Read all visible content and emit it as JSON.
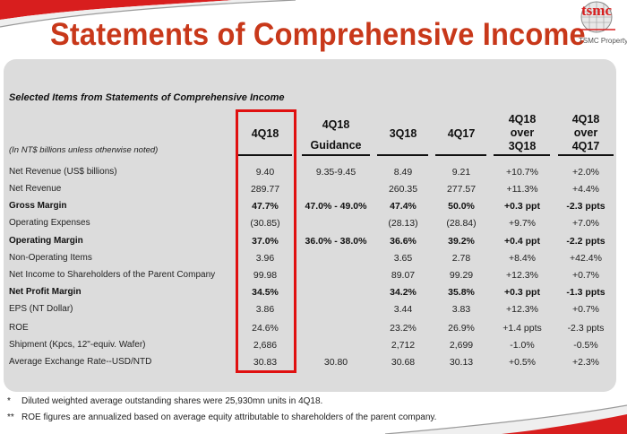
{
  "slide": {
    "title": "Statements of Comprehensive Income",
    "logo_text": "tsmc",
    "logo_subtitle": "TSMC Property",
    "brand_color": "#c8381a",
    "highlight_color": "#e01010"
  },
  "table": {
    "section_title": "Selected Items from Statements of Comprehensive Income",
    "units_note": "(In NT$ billions unless otherwise noted)",
    "headers": [
      {
        "line1": "4Q18",
        "line2": "",
        "line3": ""
      },
      {
        "line1": "4Q18",
        "line2": "Guidance",
        "line3": ""
      },
      {
        "line1": "3Q18",
        "line2": "",
        "line3": ""
      },
      {
        "line1": "4Q17",
        "line2": "",
        "line3": ""
      },
      {
        "line1": "4Q18",
        "line2": "over",
        "line3": "3Q18"
      },
      {
        "line1": "4Q18",
        "line2": "over",
        "line3": "4Q17"
      }
    ],
    "rows": [
      {
        "label": "Net Revenue (US$ billions)",
        "bold": false,
        "values": [
          "9.40",
          "9.35-9.45",
          "8.49",
          "9.21",
          "+10.7%",
          "+2.0%"
        ]
      },
      {
        "label": "Net Revenue",
        "bold": false,
        "values": [
          "289.77",
          "",
          "260.35",
          "277.57",
          "+11.3%",
          "+4.4%"
        ]
      },
      {
        "label": "Gross Margin",
        "bold": true,
        "values": [
          "47.7%",
          "47.0% - 49.0%",
          "47.4%",
          "50.0%",
          "+0.3 ppt",
          "-2.3 ppts"
        ]
      },
      {
        "label": "Operating Expenses",
        "bold": false,
        "values": [
          "(30.85)",
          "",
          "(28.13)",
          "(28.84)",
          "+9.7%",
          "+7.0%"
        ]
      },
      {
        "label": "Operating Margin",
        "bold": true,
        "values": [
          "37.0%",
          "36.0% - 38.0%",
          "36.6%",
          "39.2%",
          "+0.4 ppt",
          "-2.2 ppts"
        ]
      },
      {
        "label": "Non-Operating Items",
        "bold": false,
        "values": [
          "3.96",
          "",
          "3.65",
          "2.78",
          "+8.4%",
          "+42.4%"
        ]
      },
      {
        "label": "Net Income to Shareholders of the Parent Company",
        "bold": false,
        "values": [
          "99.98",
          "",
          "89.07",
          "99.29",
          "+12.3%",
          "+0.7%"
        ]
      },
      {
        "label": "Net Profit Margin",
        "bold": true,
        "values": [
          "34.5%",
          "",
          "34.2%",
          "35.8%",
          "+0.3 ppt",
          "-1.3 ppts"
        ]
      },
      {
        "label": "EPS (NT Dollar)",
        "bold": false,
        "values": [
          "3.86",
          "",
          "3.44",
          "3.83",
          "+12.3%",
          "+0.7%"
        ]
      },
      {
        "label": "ROE",
        "bold": false,
        "values": [
          "24.6%",
          "",
          "23.2%",
          "26.9%",
          "+1.4 ppts",
          "-2.3 ppts"
        ]
      },
      {
        "label": "Shipment (Kpcs, 12\"-equiv. Wafer)",
        "bold": false,
        "values": [
          "2,686",
          "",
          "2,712",
          "2,699",
          "-1.0%",
          "-0.5%"
        ]
      },
      {
        "label": "Average Exchange Rate--USD/NTD",
        "bold": false,
        "values": [
          "30.83",
          "30.80",
          "30.68",
          "30.13",
          "+0.5%",
          "+2.3%"
        ]
      }
    ]
  },
  "footnotes": [
    {
      "mark": "*",
      "text": "Diluted weighted average outstanding shares were 25,930mn units in 4Q18."
    },
    {
      "mark": "**",
      "text": "ROE figures are annualized based on average equity attributable to shareholders of the parent company."
    }
  ]
}
